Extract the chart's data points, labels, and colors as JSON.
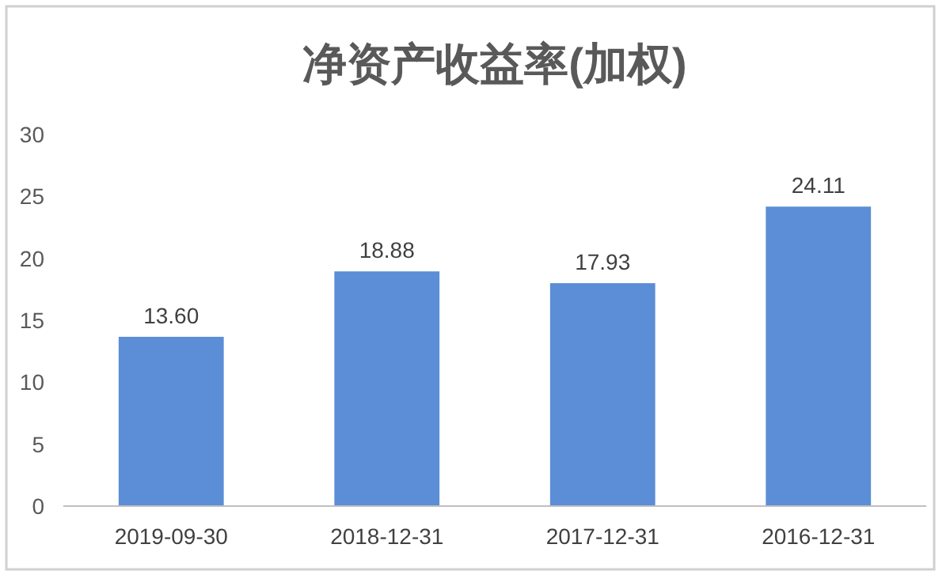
{
  "chart_data": {
    "type": "bar",
    "title": "净资产收益率(加权)",
    "categories": [
      "2019-09-30",
      "2018-12-31",
      "2017-12-31",
      "2016-12-31"
    ],
    "values": [
      13.6,
      18.88,
      17.93,
      24.11
    ],
    "value_labels": [
      "13.60",
      "18.88",
      "17.93",
      "24.11"
    ],
    "color": "#5b8ed6",
    "ylim": [
      0,
      30
    ],
    "yticks": [
      0,
      5,
      10,
      15,
      20,
      25,
      30
    ]
  }
}
